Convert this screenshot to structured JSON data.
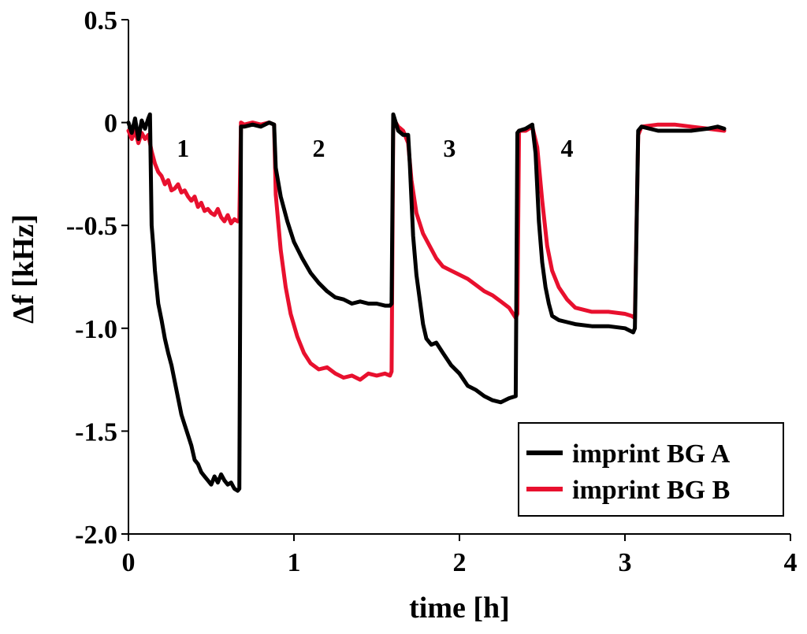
{
  "chart_data": {
    "type": "line",
    "title": "",
    "xlabel": "time [h]",
    "ylabel": "Δf [kHz]",
    "xlim": [
      0,
      4
    ],
    "ylim": [
      -2.0,
      0.5
    ],
    "grid": false,
    "legend_position": "bottom-right",
    "x_ticks": [
      {
        "value": 0,
        "label": "0"
      },
      {
        "value": 1,
        "label": "1"
      },
      {
        "value": 2,
        "label": "2"
      },
      {
        "value": 3,
        "label": "3"
      },
      {
        "value": 4,
        "label": "4"
      }
    ],
    "y_ticks": [
      {
        "value": 0.5,
        "label": "0.5"
      },
      {
        "value": 0,
        "label": "0"
      },
      {
        "value": -0.5,
        "label": "--0.5"
      },
      {
        "value": -1.0,
        "label": "-1.0"
      },
      {
        "value": -1.5,
        "label": "-1.5"
      },
      {
        "value": -2.0,
        "label": "-2.0"
      }
    ],
    "annotations": [
      {
        "text": "1",
        "x": 0.33,
        "y": -0.12
      },
      {
        "text": "2",
        "x": 1.15,
        "y": -0.12
      },
      {
        "text": "3",
        "x": 1.94,
        "y": -0.12
      },
      {
        "text": "4",
        "x": 2.65,
        "y": -0.12
      }
    ],
    "series": [
      {
        "name": "imprint BG A",
        "color": "#000000",
        "x": [
          0.0,
          0.02,
          0.04,
          0.06,
          0.08,
          0.1,
          0.12,
          0.13,
          0.14,
          0.15,
          0.16,
          0.18,
          0.2,
          0.22,
          0.24,
          0.26,
          0.28,
          0.3,
          0.32,
          0.34,
          0.36,
          0.38,
          0.4,
          0.42,
          0.44,
          0.46,
          0.48,
          0.5,
          0.52,
          0.54,
          0.56,
          0.58,
          0.6,
          0.62,
          0.64,
          0.66,
          0.67,
          0.68,
          0.7,
          0.75,
          0.8,
          0.85,
          0.88,
          0.89,
          0.92,
          0.96,
          1.0,
          1.05,
          1.1,
          1.15,
          1.2,
          1.25,
          1.3,
          1.35,
          1.4,
          1.45,
          1.5,
          1.55,
          1.58,
          1.59,
          1.6,
          1.63,
          1.66,
          1.69,
          1.7,
          1.72,
          1.74,
          1.76,
          1.78,
          1.8,
          1.83,
          1.86,
          1.9,
          1.95,
          2.0,
          2.05,
          2.1,
          2.15,
          2.2,
          2.25,
          2.3,
          2.34,
          2.35,
          2.36,
          2.4,
          2.44,
          2.46,
          2.48,
          2.5,
          2.52,
          2.54,
          2.56,
          2.6,
          2.65,
          2.7,
          2.8,
          2.9,
          3.0,
          3.05,
          3.06,
          3.08,
          3.1,
          3.2,
          3.3,
          3.4,
          3.5,
          3.56,
          3.6
        ],
        "y": [
          0.0,
          -0.05,
          0.02,
          -0.08,
          0.01,
          -0.03,
          0.02,
          0.04,
          -0.5,
          -0.6,
          -0.72,
          -0.88,
          -0.96,
          -1.05,
          -1.12,
          -1.18,
          -1.26,
          -1.34,
          -1.42,
          -1.47,
          -1.52,
          -1.57,
          -1.64,
          -1.66,
          -1.7,
          -1.72,
          -1.74,
          -1.76,
          -1.72,
          -1.75,
          -1.71,
          -1.74,
          -1.76,
          -1.75,
          -1.78,
          -1.79,
          -1.78,
          -0.02,
          -0.02,
          -0.01,
          -0.02,
          0.0,
          -0.01,
          -0.22,
          -0.36,
          -0.48,
          -0.58,
          -0.66,
          -0.73,
          -0.78,
          -0.82,
          -0.85,
          -0.86,
          -0.88,
          -0.87,
          -0.88,
          -0.88,
          -0.89,
          -0.89,
          -0.88,
          0.04,
          -0.04,
          -0.06,
          -0.06,
          -0.2,
          -0.55,
          -0.74,
          -0.86,
          -0.98,
          -1.05,
          -1.08,
          -1.07,
          -1.12,
          -1.18,
          -1.22,
          -1.28,
          -1.3,
          -1.33,
          -1.35,
          -1.36,
          -1.34,
          -1.33,
          -0.05,
          -0.04,
          -0.03,
          -0.01,
          -0.15,
          -0.48,
          -0.68,
          -0.8,
          -0.88,
          -0.94,
          -0.96,
          -0.97,
          -0.98,
          -0.99,
          -0.99,
          -1.0,
          -1.02,
          -1.0,
          -0.04,
          -0.02,
          -0.04,
          -0.04,
          -0.04,
          -0.03,
          -0.02,
          -0.03
        ]
      },
      {
        "name": "imprint BG B",
        "color": "#e8102e",
        "x": [
          0.0,
          0.02,
          0.04,
          0.06,
          0.08,
          0.1,
          0.12,
          0.14,
          0.16,
          0.18,
          0.2,
          0.22,
          0.24,
          0.26,
          0.28,
          0.3,
          0.32,
          0.34,
          0.36,
          0.38,
          0.4,
          0.42,
          0.44,
          0.46,
          0.48,
          0.5,
          0.52,
          0.54,
          0.56,
          0.58,
          0.6,
          0.62,
          0.64,
          0.66,
          0.67,
          0.68,
          0.7,
          0.75,
          0.8,
          0.85,
          0.88,
          0.89,
          0.92,
          0.95,
          0.98,
          1.02,
          1.06,
          1.1,
          1.15,
          1.2,
          1.25,
          1.3,
          1.35,
          1.4,
          1.45,
          1.5,
          1.55,
          1.58,
          1.59,
          1.6,
          1.63,
          1.66,
          1.69,
          1.71,
          1.74,
          1.78,
          1.82,
          1.86,
          1.9,
          1.95,
          2.0,
          2.05,
          2.1,
          2.15,
          2.2,
          2.25,
          2.3,
          2.34,
          2.35,
          2.36,
          2.4,
          2.44,
          2.47,
          2.5,
          2.53,
          2.56,
          2.6,
          2.65,
          2.7,
          2.75,
          2.8,
          2.9,
          3.0,
          3.04,
          3.06,
          3.08,
          3.1,
          3.2,
          3.3,
          3.4,
          3.5,
          3.6
        ],
        "y": [
          -0.04,
          -0.08,
          -0.04,
          -0.1,
          -0.05,
          -0.08,
          -0.06,
          -0.14,
          -0.2,
          -0.24,
          -0.26,
          -0.3,
          -0.28,
          -0.33,
          -0.32,
          -0.3,
          -0.34,
          -0.33,
          -0.36,
          -0.38,
          -0.36,
          -0.41,
          -0.39,
          -0.43,
          -0.42,
          -0.44,
          -0.45,
          -0.42,
          -0.46,
          -0.48,
          -0.45,
          -0.49,
          -0.47,
          -0.48,
          -0.47,
          0.0,
          -0.01,
          0.0,
          -0.01,
          0.0,
          -0.01,
          -0.35,
          -0.62,
          -0.8,
          -0.93,
          -1.04,
          -1.12,
          -1.17,
          -1.2,
          -1.19,
          -1.22,
          -1.24,
          -1.23,
          -1.25,
          -1.22,
          -1.23,
          -1.22,
          -1.23,
          -1.21,
          0.02,
          -0.02,
          -0.04,
          -0.1,
          -0.28,
          -0.44,
          -0.54,
          -0.6,
          -0.66,
          -0.7,
          -0.72,
          -0.74,
          -0.76,
          -0.79,
          -0.82,
          -0.84,
          -0.87,
          -0.9,
          -0.95,
          -0.93,
          -0.04,
          -0.04,
          -0.02,
          -0.12,
          -0.38,
          -0.6,
          -0.72,
          -0.8,
          -0.86,
          -0.9,
          -0.91,
          -0.92,
          -0.92,
          -0.93,
          -0.94,
          -0.95,
          -0.06,
          -0.02,
          -0.01,
          -0.01,
          -0.02,
          -0.03,
          -0.04
        ]
      }
    ]
  }
}
